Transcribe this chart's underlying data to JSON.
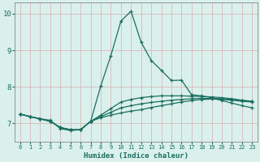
{
  "xlabel": "Humidex (Indice chaleur)",
  "background_color": "#daf0ec",
  "grid_color": "#d8b8b8",
  "line_color": "#1a6e60",
  "xlim": [
    -0.5,
    23.5
  ],
  "ylim": [
    6.5,
    10.3
  ],
  "yticks": [
    7,
    8,
    9,
    10
  ],
  "xticks": [
    0,
    1,
    2,
    3,
    4,
    5,
    6,
    7,
    8,
    9,
    10,
    11,
    12,
    13,
    14,
    15,
    16,
    17,
    18,
    19,
    20,
    21,
    22,
    23
  ],
  "series1_x": [
    0,
    1,
    2,
    3,
    4,
    5,
    6,
    7,
    8,
    9,
    10,
    11,
    12,
    13,
    14,
    15,
    16,
    17,
    18,
    19,
    20,
    21,
    22,
    23
  ],
  "series1_y": [
    7.25,
    7.18,
    7.12,
    7.08,
    6.85,
    6.8,
    6.82,
    7.05,
    8.02,
    8.85,
    9.8,
    10.07,
    9.22,
    8.72,
    8.45,
    8.17,
    8.18,
    7.78,
    7.75,
    7.7,
    7.62,
    7.55,
    7.48,
    7.42
  ],
  "series2_x": [
    0,
    1,
    2,
    3,
    4,
    5,
    6,
    7,
    8,
    9,
    10,
    11,
    12,
    13,
    14,
    15,
    16,
    17,
    18,
    19,
    20,
    21,
    22,
    23
  ],
  "series2_y": [
    7.25,
    7.18,
    7.12,
    7.05,
    6.88,
    6.82,
    6.82,
    7.05,
    7.15,
    7.22,
    7.28,
    7.33,
    7.37,
    7.43,
    7.48,
    7.53,
    7.58,
    7.62,
    7.65,
    7.66,
    7.65,
    7.63,
    7.6,
    7.58
  ],
  "series3_x": [
    0,
    1,
    2,
    3,
    4,
    5,
    6,
    7,
    8,
    9,
    10,
    11,
    12,
    13,
    14,
    15,
    16,
    17,
    18,
    19,
    20,
    21,
    22,
    23
  ],
  "series3_y": [
    7.25,
    7.18,
    7.12,
    7.05,
    6.88,
    6.82,
    6.82,
    7.05,
    7.18,
    7.3,
    7.42,
    7.48,
    7.53,
    7.57,
    7.6,
    7.63,
    7.65,
    7.67,
    7.68,
    7.68,
    7.67,
    7.65,
    7.62,
    7.6
  ],
  "series4_x": [
    0,
    1,
    2,
    3,
    4,
    5,
    6,
    7,
    8,
    9,
    10,
    11,
    12,
    13,
    14,
    15,
    16,
    17,
    18,
    19,
    20,
    21,
    22,
    23
  ],
  "series4_y": [
    7.25,
    7.18,
    7.12,
    7.05,
    6.88,
    6.82,
    6.82,
    7.05,
    7.22,
    7.4,
    7.58,
    7.65,
    7.7,
    7.73,
    7.75,
    7.75,
    7.75,
    7.74,
    7.73,
    7.72,
    7.7,
    7.67,
    7.63,
    7.6
  ]
}
